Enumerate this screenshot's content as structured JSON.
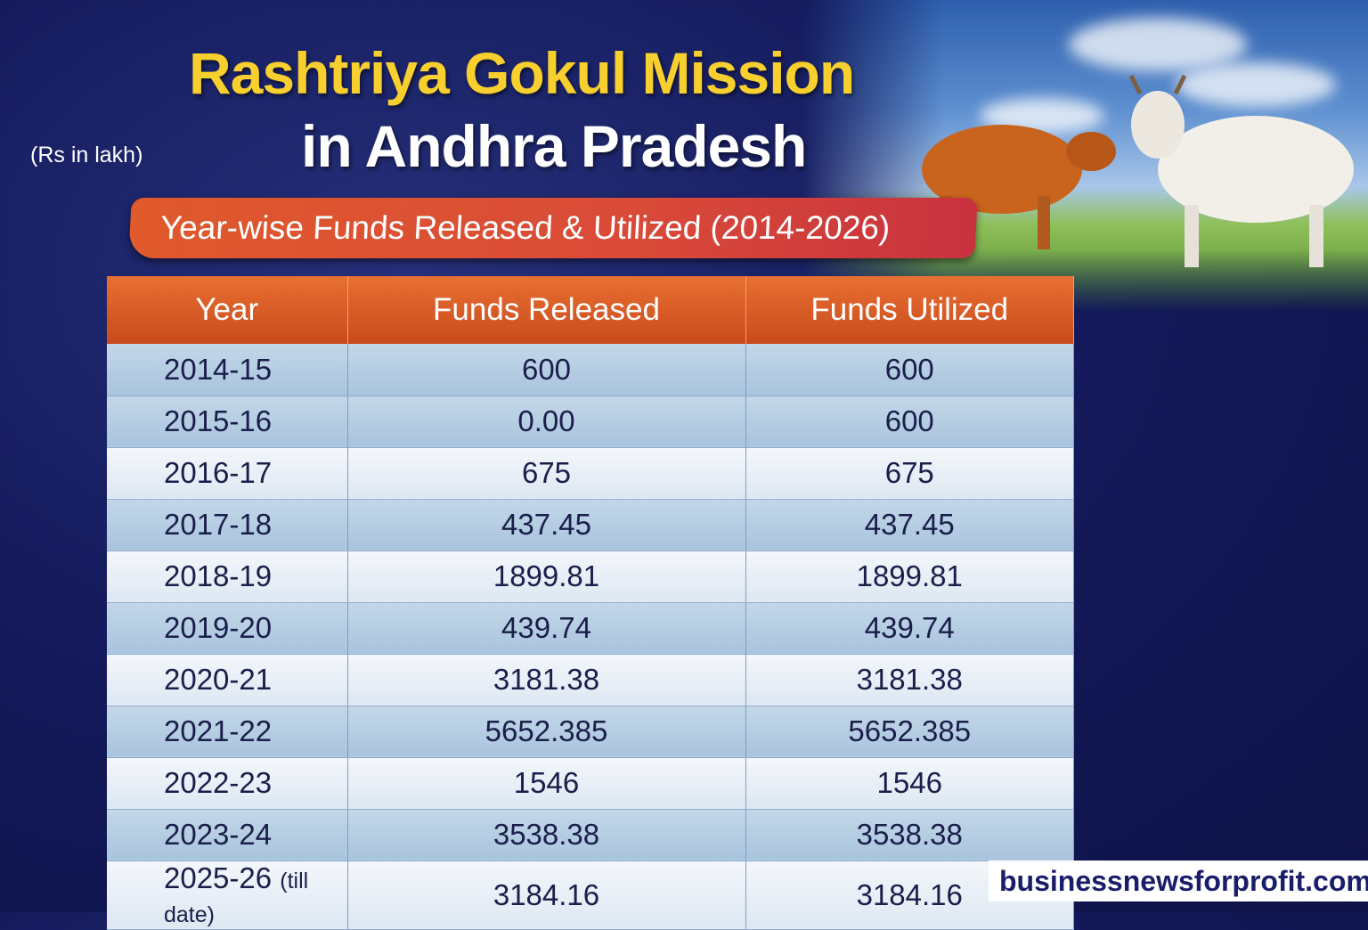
{
  "title": {
    "line1": "Rashtriya Gokul Mission",
    "line2": "in Andhra Pradesh",
    "unit": "(Rs in lakh)",
    "subtitle": "Year-wise Funds Released & Utilized (2014-2026)"
  },
  "colors": {
    "title": "#f7cf2e",
    "banner": "#d94a38",
    "header": "#e06a2c",
    "background": "#141a5c"
  },
  "chart_data": {
    "type": "table",
    "title": "Year-wise Funds Released & Utilized (2014-2026)",
    "columns": [
      "Year",
      "Funds Released",
      "Funds Utilized"
    ],
    "rows": [
      {
        "year": "2014-15",
        "released": "600",
        "utilized": "600"
      },
      {
        "year": "2015-16",
        "released": "0.00",
        "utilized": "600"
      },
      {
        "year": "2016-17",
        "released": "675",
        "utilized": "675"
      },
      {
        "year": "2017-18",
        "released": "437.45",
        "utilized": "437.45"
      },
      {
        "year": "2018-19",
        "released": "1899.81",
        "utilized": "1899.81"
      },
      {
        "year": "2019-20",
        "released": "439.74",
        "utilized": "439.74"
      },
      {
        "year": "2020-21",
        "released": "3181.38",
        "utilized": "3181.38"
      },
      {
        "year": "2021-22",
        "released": "5652.385",
        "utilized": "5652.385"
      },
      {
        "year": "2022-23",
        "released": "1546",
        "utilized": "1546"
      },
      {
        "year": "2023-24",
        "released": "3538.38",
        "utilized": "3538.38"
      },
      {
        "year": "2025-26",
        "note": "(till date)",
        "released": "3184.16",
        "utilized": "3184.16"
      }
    ]
  },
  "watermark": "businessnewsforprofit.com"
}
